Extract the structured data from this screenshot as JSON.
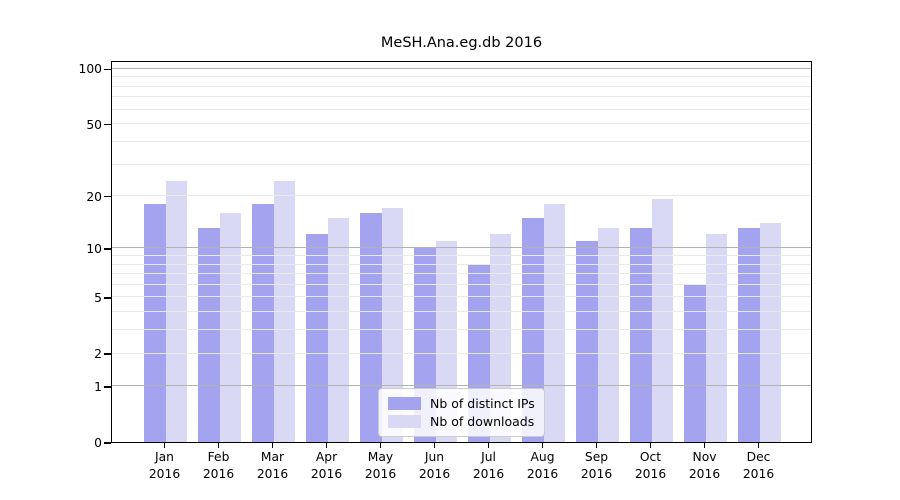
{
  "chart_data": {
    "type": "bar",
    "title": "MeSH.Ana.eg.db 2016",
    "months": [
      "Jan",
      "Feb",
      "Mar",
      "Apr",
      "May",
      "Jun",
      "Jul",
      "Aug",
      "Sep",
      "Oct",
      "Nov",
      "Dec"
    ],
    "year": "2016",
    "categories": [
      "Jan 2016",
      "Feb 2016",
      "Mar 2016",
      "Apr 2016",
      "May 2016",
      "Jun 2016",
      "Jul 2016",
      "Aug 2016",
      "Sep 2016",
      "Oct 2016",
      "Nov 2016",
      "Dec 2016"
    ],
    "series": [
      {
        "name": "Nb of distinct IPs",
        "color": "#a3a3ef",
        "values": [
          18,
          13,
          18,
          12,
          16,
          10,
          8,
          15,
          11,
          13,
          6,
          13
        ]
      },
      {
        "name": "Nb of downloads",
        "color": "#d9d9f6",
        "values": [
          24,
          16,
          24,
          15,
          17,
          11,
          12,
          18,
          13,
          19,
          12,
          14
        ]
      }
    ],
    "xlabel": "",
    "ylabel": "",
    "yscale": "log1p",
    "ylim": [
      0,
      111
    ],
    "ytick_values": [
      0,
      1,
      2,
      5,
      10,
      20,
      50,
      100
    ],
    "ytick_labels": [
      "0",
      "1",
      "2",
      "5",
      "10",
      "20",
      "50",
      "100"
    ],
    "major_gridlines": [
      1,
      10,
      100
    ],
    "minor_gridlines": [
      2,
      3,
      4,
      5,
      6,
      7,
      8,
      9,
      20,
      30,
      40,
      50,
      60,
      70,
      80,
      90
    ],
    "grid": true,
    "legend_position": "lower center"
  },
  "legend": {
    "items": [
      {
        "label": "Nb of distinct IPs",
        "color": "#a3a3ef"
      },
      {
        "label": "Nb of downloads",
        "color": "#d9d9f6"
      }
    ]
  },
  "colors": {
    "background": "#ffffff",
    "axis": "#000000",
    "grid_minor": "#e9e9e9",
    "grid_major": "#b2b2b2",
    "legend_border": "#cccccc"
  }
}
